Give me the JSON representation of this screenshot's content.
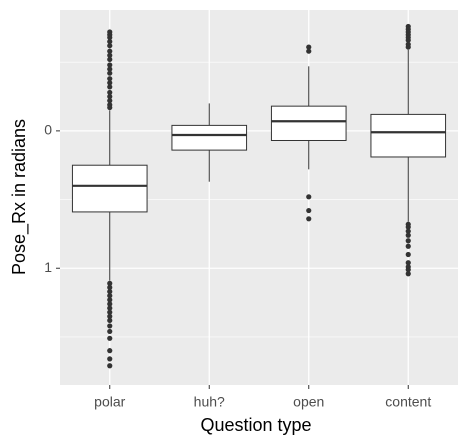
{
  "chart_data": {
    "type": "box",
    "x_label": "Question type",
    "y_label": "Pose_Rx in radians",
    "categories": [
      "polar",
      "huh?",
      "open",
      "content"
    ],
    "boxes": [
      {
        "min": -0.15,
        "q1": 0.25,
        "median": 0.4,
        "q3": 0.59,
        "max": 1.09,
        "outliers": [
          -0.72,
          -0.7,
          -0.68,
          -0.65,
          -0.62,
          -0.58,
          -0.55,
          -0.52,
          -0.48,
          -0.45,
          -0.42,
          -0.38,
          -0.35,
          -0.32,
          -0.28,
          -0.25,
          -0.22,
          -0.19,
          -0.17,
          1.11,
          1.14,
          1.17,
          1.2,
          1.23,
          1.26,
          1.29,
          1.32,
          1.35,
          1.38,
          1.42,
          1.46,
          1.51,
          1.6,
          1.66,
          1.71
        ]
      },
      {
        "min": -0.2,
        "q1": -0.04,
        "median": 0.03,
        "q3": 0.14,
        "max": 0.37,
        "outliers": []
      },
      {
        "min": -0.47,
        "q1": -0.18,
        "median": -0.07,
        "q3": 0.07,
        "max": 0.28,
        "outliers": [
          -0.61,
          -0.58,
          0.48,
          0.58,
          0.64
        ]
      },
      {
        "min": -0.59,
        "q1": -0.12,
        "median": 0.01,
        "q3": 0.19,
        "max": 0.66,
        "outliers": [
          -0.76,
          -0.74,
          -0.72,
          -0.7,
          -0.68,
          -0.66,
          -0.63,
          -0.61,
          0.68,
          0.7,
          0.73,
          0.76,
          0.8,
          0.84,
          0.9,
          0.96,
          0.99,
          1.01,
          1.04
        ]
      }
    ],
    "ylim": [
      -0.88,
      1.85
    ],
    "y_reverse": true,
    "yticks": [
      0,
      1
    ],
    "minor_yticks": [
      -0.5,
      0.5,
      1.5
    ],
    "grid": true,
    "panel_color": "#ebebeb",
    "box_fill": "#ffffff",
    "line_color": "#333333"
  }
}
